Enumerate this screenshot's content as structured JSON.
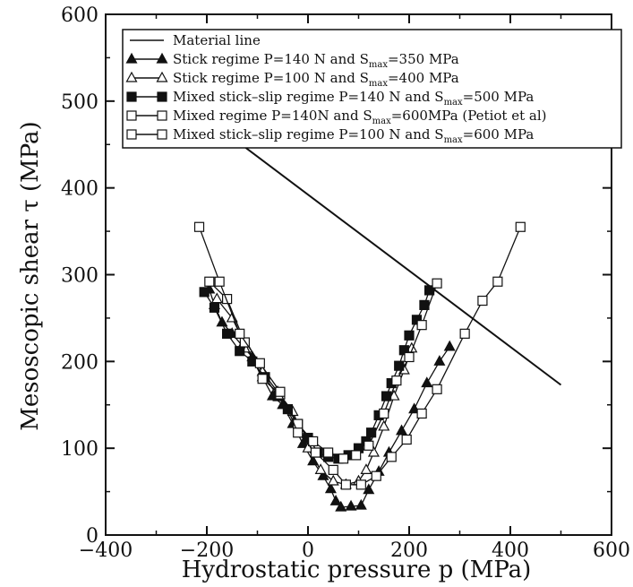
{
  "chart_data": {
    "type": "line",
    "title": "",
    "xlabel": "Hydrostatic pressure p (MPa)",
    "ylabel": "Mesoscopic shear τ (MPa)",
    "xlim": [
      -400,
      600
    ],
    "ylim": [
      0,
      600
    ],
    "xticks": [
      "−400",
      "−200",
      "0",
      "200",
      "400",
      "600"
    ],
    "yticks": [
      "0",
      "100",
      "200",
      "300",
      "400",
      "500",
      "600"
    ],
    "grid": false,
    "legend_position": "top-right",
    "series": [
      {
        "name": "Material line",
        "legend_parts": [
          "Material line"
        ],
        "marker": "none",
        "points": [
          [
            -200,
            480
          ],
          [
            500,
            173
          ]
        ]
      },
      {
        "name": "Stick regime P=140 N and S_max=350 MPa",
        "legend_parts": [
          "Stick regime P=140 N and S",
          "max",
          "=350 MPa"
        ],
        "marker": "triangle-filled",
        "points": [
          [
            -195,
            283
          ],
          [
            -185,
            265
          ],
          [
            -170,
            245
          ],
          [
            -150,
            232
          ],
          [
            -130,
            218
          ],
          [
            -110,
            205
          ],
          [
            -90,
            182
          ],
          [
            -70,
            160
          ],
          [
            -50,
            150
          ],
          [
            -30,
            128
          ],
          [
            -10,
            105
          ],
          [
            10,
            85
          ],
          [
            30,
            68
          ],
          [
            45,
            53
          ],
          [
            55,
            39
          ],
          [
            65,
            32
          ],
          [
            85,
            33
          ],
          [
            105,
            34
          ],
          [
            120,
            52
          ],
          [
            140,
            73
          ],
          [
            160,
            95
          ],
          [
            185,
            120
          ],
          [
            210,
            145
          ],
          [
            235,
            175
          ],
          [
            260,
            200
          ],
          [
            280,
            217
          ]
        ]
      },
      {
        "name": "Stick regime P=100 N and S_max=400 MPa",
        "legend_parts": [
          "Stick regime P=100 N and S",
          "max",
          "=400 MPa"
        ],
        "marker": "triangle-open",
        "points": [
          [
            -180,
            272
          ],
          [
            -150,
            250
          ],
          [
            -120,
            215
          ],
          [
            -90,
            188
          ],
          [
            -60,
            165
          ],
          [
            -30,
            142
          ],
          [
            0,
            100
          ],
          [
            25,
            75
          ],
          [
            50,
            62
          ],
          [
            75,
            58
          ],
          [
            100,
            62
          ],
          [
            115,
            75
          ],
          [
            130,
            95
          ],
          [
            150,
            125
          ],
          [
            170,
            160
          ],
          [
            190,
            190
          ],
          [
            205,
            215
          ]
        ]
      },
      {
        "name": "Mixed stick–slip regime P=140 N and S_max=500 MPa",
        "legend_parts": [
          "Mixed stick–slip regime P=140 N and S",
          "max",
          "=500 MPa"
        ],
        "marker": "square-filled",
        "points": [
          [
            -205,
            280
          ],
          [
            -185,
            262
          ],
          [
            -160,
            232
          ],
          [
            -135,
            212
          ],
          [
            -110,
            200
          ],
          [
            -85,
            182
          ],
          [
            -60,
            160
          ],
          [
            -40,
            145
          ],
          [
            -20,
            128
          ],
          [
            0,
            112
          ],
          [
            20,
            95
          ],
          [
            40,
            90
          ],
          [
            60,
            88
          ],
          [
            80,
            92
          ],
          [
            100,
            100
          ],
          [
            115,
            108
          ],
          [
            125,
            118
          ],
          [
            140,
            138
          ],
          [
            155,
            160
          ],
          [
            165,
            175
          ],
          [
            180,
            195
          ],
          [
            190,
            213
          ],
          [
            200,
            230
          ],
          [
            215,
            248
          ],
          [
            230,
            265
          ],
          [
            240,
            282
          ]
        ]
      },
      {
        "name": "Mixed regime P=140N and S_max=600MPa (Petiot et al)",
        "legend_parts": [
          "Mixed regime P=140N and S",
          "max",
          "=600MPa (Petiot et al)"
        ],
        "marker": "square-open",
        "points": [
          [
            -195,
            292
          ],
          [
            -160,
            272
          ],
          [
            -125,
            222
          ],
          [
            -90,
            180
          ],
          [
            -55,
            162
          ],
          [
            -20,
            128
          ],
          [
            10,
            108
          ],
          [
            40,
            95
          ],
          [
            70,
            88
          ],
          [
            95,
            92
          ],
          [
            120,
            103
          ],
          [
            150,
            140
          ],
          [
            175,
            178
          ],
          [
            200,
            205
          ],
          [
            225,
            242
          ],
          [
            255,
            290
          ]
        ]
      },
      {
        "name": "Mixed stick–slip regime P=100 N and S_max=600 MPa",
        "legend_parts": [
          "Mixed stick–slip regime P=100 N and S",
          "max",
          "=600 MPa"
        ],
        "marker": "square-open",
        "points": [
          [
            -215,
            355
          ],
          [
            -175,
            292
          ],
          [
            -135,
            232
          ],
          [
            -95,
            198
          ],
          [
            -55,
            165
          ],
          [
            -20,
            118
          ],
          [
            15,
            95
          ],
          [
            50,
            75
          ],
          [
            75,
            58
          ],
          [
            105,
            58
          ],
          [
            135,
            68
          ],
          [
            165,
            90
          ],
          [
            195,
            110
          ],
          [
            225,
            140
          ],
          [
            255,
            168
          ],
          [
            310,
            232
          ],
          [
            345,
            270
          ],
          [
            375,
            292
          ],
          [
            420,
            355
          ]
        ]
      }
    ]
  }
}
